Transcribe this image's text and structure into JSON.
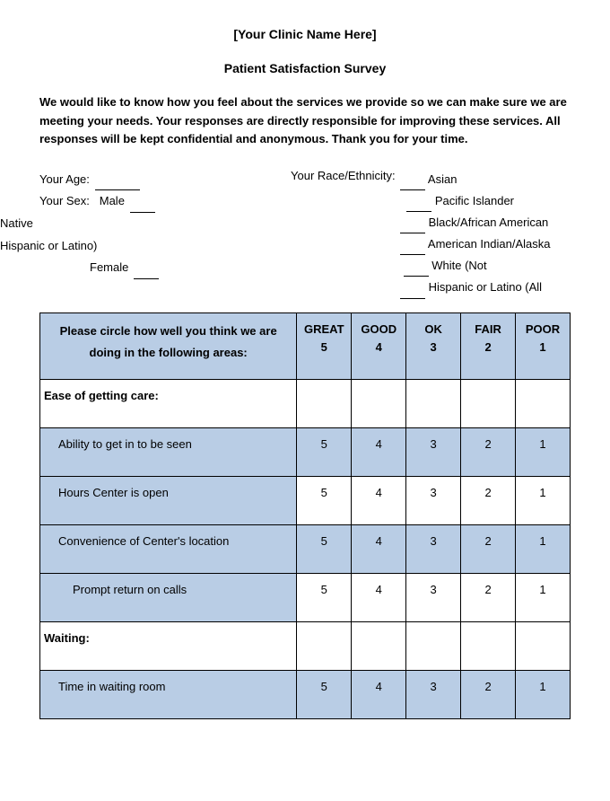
{
  "clinic_name": "[Your Clinic Name Here]",
  "survey_title": "Patient Satisfaction Survey",
  "intro_text": "We would like to know how you feel about the services we provide so we can make sure we are meeting your needs.  Your responses are directly responsible for improving these services.  All responses will be kept confidential and anonymous.  Thank you for your time.",
  "demographics": {
    "age_label": "Your Age:",
    "sex_label": "Your Sex:",
    "male_label": "Male",
    "native_label": "Native",
    "hispanic_left": "Hispanic or Latino)",
    "female_label": "Female",
    "race_label": "Your Race/Ethnicity:",
    "eth_asian": "Asian",
    "eth_pacific": "Pacific Islander",
    "eth_black": "Black/African American",
    "eth_native": "American Indian/Alaska",
    "eth_white": "White (Not",
    "eth_hispanic": "Hispanic or Latino (All"
  },
  "table": {
    "header_prompt": "Please circle how well you think we are doing in the following areas:",
    "scores": [
      {
        "label": "GREAT",
        "value": "5"
      },
      {
        "label": "GOOD",
        "value": "4"
      },
      {
        "label": "OK",
        "value": "3"
      },
      {
        "label": "FAIR",
        "value": "2"
      },
      {
        "label": "POOR",
        "value": "1"
      }
    ],
    "sections": [
      {
        "title": "Ease of getting care:",
        "rows": [
          {
            "text": "Ability to get in to be seen",
            "indent": 1
          },
          {
            "text": "Hours Center is open",
            "indent": 1
          },
          {
            "text": "Convenience of Center's location",
            "indent": 1
          },
          {
            "text": "Prompt return on calls",
            "indent": 2
          }
        ]
      },
      {
        "title": "Waiting:",
        "rows": [
          {
            "text": "Time in waiting room",
            "indent": 1
          }
        ]
      }
    ]
  },
  "colors": {
    "header_bg": "#b9cde5",
    "border": "#000000",
    "bg": "#ffffff"
  }
}
